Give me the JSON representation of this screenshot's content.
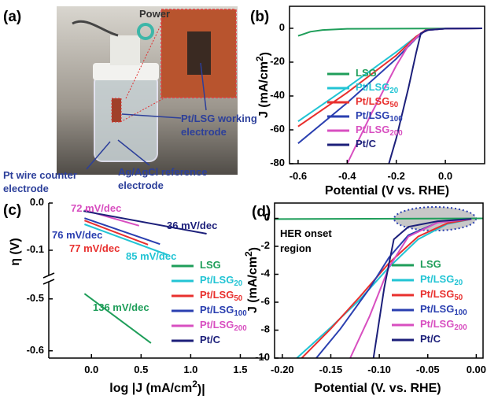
{
  "chart_data": [
    {
      "type": "image",
      "label": "(a)",
      "annotations": [
        [
          "Power"
        ],
        [
          "Pt/LSG working",
          "electrode"
        ],
        [
          "Pt wire counter",
          "electrode"
        ],
        [
          "Ag/AgCl reference",
          "electrode"
        ]
      ]
    },
    {
      "type": "line",
      "label": "(b)",
      "x_label": "Potential (V vs. RHE)",
      "y_label": "J (mA/cm2)",
      "xlim": [
        -0.635,
        0.16
      ],
      "ylim": [
        -80,
        13
      ],
      "xticks": [
        -0.6,
        -0.4,
        -0.2,
        {
          "value": 0,
          "label": "0.0"
        }
      ],
      "yticks": [
        0,
        -20,
        -40,
        -60,
        -80
      ],
      "legend": "center-left",
      "series": [
        {
          "name": "LSG",
          "color": "#1f9e5a",
          "x": [
            -0.6,
            -0.55,
            -0.5,
            -0.4,
            0.15
          ],
          "values": [
            -4.5,
            -2,
            -1,
            -0.3,
            0
          ]
        },
        {
          "name": "Pt/LSG20",
          "color": "#22c4d4",
          "x": [
            0.15,
            0,
            -0.08,
            -0.12,
            -0.2,
            -0.4,
            -0.6
          ],
          "values": [
            0,
            -0.2,
            -1,
            -5,
            -14,
            -35,
            -55
          ]
        },
        {
          "name": "Pt/LSG50",
          "color": "#e8302e",
          "x": [
            0.15,
            0,
            -0.08,
            -0.12,
            -0.2,
            -0.4,
            -0.6
          ],
          "values": [
            0,
            -0.2,
            -1,
            -5,
            -16,
            -38,
            -58
          ]
        },
        {
          "name": "Pt/LSG100",
          "color": "#2a3fb0",
          "x": [
            0.15,
            0,
            -0.08,
            -0.12,
            -0.2,
            -0.4,
            -0.6
          ],
          "values": [
            0,
            -0.2,
            -1.2,
            -6,
            -18,
            -44,
            -68
          ]
        },
        {
          "name": "Pt/LSG200",
          "color": "#d84fc0",
          "x": [
            0.15,
            0,
            -0.07,
            -0.1,
            -0.15,
            -0.2,
            -0.3,
            -0.4
          ],
          "values": [
            0,
            -0.2,
            -1,
            -3,
            -10,
            -22,
            -50,
            -80
          ]
        },
        {
          "name": "Pt/C",
          "color": "#1c1f7a",
          "x": [
            0.15,
            0,
            -0.07,
            -0.1,
            -0.12,
            -0.15,
            -0.2,
            -0.23
          ],
          "values": [
            0,
            -0.2,
            -1,
            -3,
            -15,
            -35,
            -65,
            -80
          ]
        }
      ]
    },
    {
      "type": "tafel",
      "label": "(c)",
      "x_label": "log |J (mA/cm2)|",
      "y_label": "η (V)",
      "xlim": [
        -0.43,
        1.75
      ],
      "ylim": [
        -0.614,
        0
      ],
      "ybreak": [
        -0.47,
        -0.15
      ],
      "xticks": [
        {
          "value": 0,
          "label": "0.0"
        },
        0.5,
        {
          "value": 1,
          "label": "1.0"
        },
        1.5
      ],
      "yticks": [
        {
          "value": 0,
          "label": "0.0"
        },
        -0.1,
        -0.5,
        -0.6
      ],
      "legend": "bottom-right",
      "series": [
        {
          "name": "LSG",
          "color": "#1f9e5a",
          "x": [
            -0.07,
            0.6
          ],
          "values": [
            -0.49,
            -0.585
          ]
        },
        {
          "name": "Pt/LSG20",
          "color": "#22c4d4",
          "x": [
            -0.07,
            0.77
          ],
          "values": [
            -0.045,
            -0.11
          ]
        },
        {
          "name": "Pt/LSG50",
          "color": "#e8302e",
          "x": [
            -0.07,
            0.57
          ],
          "values": [
            -0.037,
            -0.088
          ]
        },
        {
          "name": "Pt/LSG100",
          "color": "#2a3fb0",
          "x": [
            -0.07,
            0.69
          ],
          "values": [
            -0.032,
            -0.087
          ]
        },
        {
          "name": "Pt/LSG200",
          "color": "#d84fc0",
          "x": [
            -0.07,
            0.48
          ],
          "values": [
            -0.015,
            -0.048
          ]
        },
        {
          "name": "Pt/C",
          "color": "#1c1f7a",
          "x": [
            -0.08,
            1.16
          ],
          "values": [
            -0.017,
            -0.065
          ]
        }
      ],
      "annotations": [
        {
          "text": "72 mV/dec",
          "color": "#d84fc0"
        },
        {
          "text": "36 mV/dec",
          "color": "#1c1f7a"
        },
        {
          "text": "76 mV/dec",
          "color": "#2a3fb0"
        },
        {
          "text": "77 mV/dec",
          "color": "#e8302e"
        },
        {
          "text": "85 mV/dec",
          "color": "#22c4d4"
        },
        {
          "text": "136 mV/dec",
          "color": "#1f9e5a"
        }
      ]
    },
    {
      "type": "line",
      "label": "(d)",
      "x_label": "Potential (V. vs. RHE)",
      "y_label": "J (mA/cm2)",
      "xlim": [
        -0.208,
        0.007
      ],
      "ylim": [
        -10,
        1.1
      ],
      "xticks": [
        {
          "value": -0.2,
          "label": "-0.20"
        },
        {
          "value": -0.15,
          "label": "-0.15"
        },
        {
          "value": -0.1,
          "label": "-0.10"
        },
        {
          "value": -0.05,
          "label": "-0.05"
        },
        {
          "value": 0,
          "label": "0.00"
        }
      ],
      "yticks": [
        0,
        -2,
        -4,
        -6,
        -8,
        -10
      ],
      "legend": "bottom-right",
      "annotations": [
        [
          "HER onset",
          "region"
        ]
      ],
      "series": [
        {
          "name": "LSG",
          "color": "#1f9e5a",
          "x": [
            -0.208,
            0.007
          ],
          "values": [
            -0.05,
            0
          ]
        },
        {
          "name": "Pt/LSG20",
          "color": "#22c4d4",
          "x": [
            -0.005,
            -0.03,
            -0.06,
            -0.09,
            -0.12,
            -0.15,
            -0.185
          ],
          "values": [
            -0.05,
            -0.4,
            -1.5,
            -3.5,
            -5.8,
            -7.8,
            -10
          ]
        },
        {
          "name": "Pt/LSG50",
          "color": "#e8302e",
          "x": [
            -0.005,
            -0.03,
            -0.06,
            -0.09,
            -0.12,
            -0.15,
            -0.18
          ],
          "values": [
            -0.05,
            -0.35,
            -1.3,
            -3.2,
            -5.6,
            -7.9,
            -10
          ]
        },
        {
          "name": "Pt/LSG100",
          "color": "#2a3fb0",
          "x": [
            -0.005,
            -0.04,
            -0.07,
            -0.09,
            -0.11,
            -0.14,
            -0.165
          ],
          "values": [
            -0.05,
            -0.3,
            -1.2,
            -2.8,
            -5,
            -7.9,
            -10
          ]
        },
        {
          "name": "Pt/LSG200",
          "color": "#d84fc0",
          "x": [
            -0.005,
            -0.04,
            -0.07,
            -0.09,
            -0.11,
            -0.13
          ],
          "values": [
            -0.05,
            -0.3,
            -1.3,
            -3.5,
            -7,
            -10
          ]
        },
        {
          "name": "Pt/C",
          "color": "#1c1f7a",
          "x": [
            -0.005,
            -0.04,
            -0.07,
            -0.085,
            -0.095,
            -0.106
          ],
          "values": [
            -0.03,
            -0.2,
            -0.6,
            -1.5,
            -5,
            -10
          ]
        }
      ]
    }
  ]
}
